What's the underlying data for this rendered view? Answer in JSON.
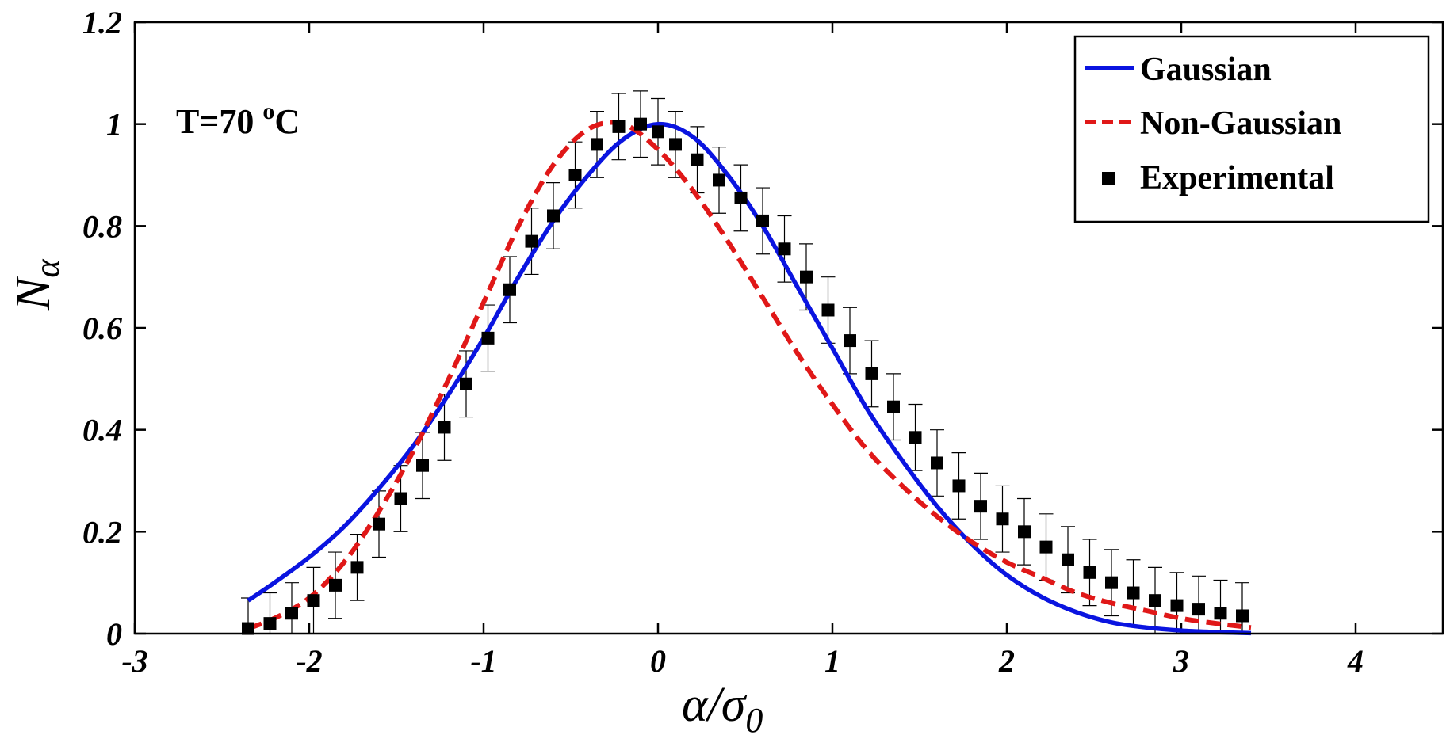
{
  "chart_data": {
    "type": "line",
    "xlabel": {
      "main": "α/σ",
      "sub": "0"
    },
    "ylabel": {
      "main": "N",
      "sub": "α"
    },
    "xlim": [
      -3,
      4.5
    ],
    "ylim": [
      0,
      1.2
    ],
    "xticks": [
      -3,
      -2,
      -1,
      0,
      1,
      2,
      3,
      4
    ],
    "xtick_labels": [
      "-3",
      "-2",
      "-1",
      "0",
      "1",
      "2",
      "3",
      "4"
    ],
    "yticks": [
      0,
      0.2,
      0.4,
      0.6,
      0.8,
      1.0,
      1.2
    ],
    "ytick_labels": [
      "0",
      "0.2",
      "0.4",
      "0.6",
      "0.8",
      "1",
      "1.2"
    ],
    "annotation": {
      "text": "T=70 ",
      "sup": "o",
      "unit": "C"
    },
    "legend_position": "top-right",
    "series": [
      {
        "name": "Gaussian",
        "style": "solid-line",
        "color": "#0a14e0",
        "x": [
          -2.35,
          -2.2,
          -2.0,
          -1.8,
          -1.6,
          -1.4,
          -1.2,
          -1.0,
          -0.8,
          -0.6,
          -0.4,
          -0.2,
          0.0,
          0.2,
          0.4,
          0.6,
          0.8,
          1.0,
          1.2,
          1.4,
          1.6,
          1.8,
          2.0,
          2.2,
          2.4,
          2.6,
          2.8,
          3.0,
          3.2,
          3.4
        ],
        "y": [
          0.065,
          0.1,
          0.15,
          0.21,
          0.285,
          0.37,
          0.47,
          0.58,
          0.7,
          0.81,
          0.9,
          0.97,
          1.0,
          0.975,
          0.9,
          0.8,
          0.68,
          0.56,
          0.44,
          0.34,
          0.25,
          0.175,
          0.115,
          0.072,
          0.042,
          0.022,
          0.012,
          0.006,
          0.003,
          0.001
        ]
      },
      {
        "name": "Non-Gaussian",
        "style": "dashed-line",
        "color": "#e01818",
        "x": [
          -2.35,
          -2.2,
          -2.0,
          -1.8,
          -1.6,
          -1.4,
          -1.2,
          -1.0,
          -0.8,
          -0.6,
          -0.4,
          -0.2,
          0.0,
          0.2,
          0.4,
          0.6,
          0.8,
          1.0,
          1.2,
          1.4,
          1.6,
          1.8,
          2.0,
          2.2,
          2.4,
          2.6,
          2.8,
          3.0,
          3.2,
          3.4
        ],
        "y": [
          0.01,
          0.03,
          0.07,
          0.14,
          0.24,
          0.36,
          0.5,
          0.65,
          0.8,
          0.92,
          0.99,
          1.0,
          0.95,
          0.87,
          0.77,
          0.66,
          0.55,
          0.45,
          0.36,
          0.29,
          0.23,
          0.18,
          0.14,
          0.11,
          0.08,
          0.06,
          0.045,
          0.03,
          0.02,
          0.012
        ]
      },
      {
        "name": "Experimental",
        "style": "square-markers-with-error-bars",
        "color": "#000000",
        "x": [
          -2.35,
          -2.225,
          -2.1,
          -1.975,
          -1.85,
          -1.725,
          -1.6,
          -1.475,
          -1.35,
          -1.225,
          -1.1,
          -0.975,
          -0.85,
          -0.725,
          -0.6,
          -0.475,
          -0.35,
          -0.225,
          -0.1,
          0.0,
          0.1,
          0.225,
          0.35,
          0.475,
          0.6,
          0.725,
          0.85,
          0.975,
          1.1,
          1.225,
          1.35,
          1.475,
          1.6,
          1.725,
          1.85,
          1.975,
          2.1,
          2.225,
          2.35,
          2.475,
          2.6,
          2.725,
          2.85,
          2.975,
          3.1,
          3.225,
          3.35
        ],
        "y": [
          0.01,
          0.02,
          0.04,
          0.065,
          0.095,
          0.13,
          0.215,
          0.265,
          0.33,
          0.405,
          0.49,
          0.58,
          0.675,
          0.77,
          0.82,
          0.9,
          0.96,
          0.995,
          1.0,
          0.985,
          0.96,
          0.93,
          0.89,
          0.855,
          0.81,
          0.755,
          0.7,
          0.635,
          0.575,
          0.51,
          0.445,
          0.385,
          0.335,
          0.29,
          0.25,
          0.225,
          0.2,
          0.17,
          0.145,
          0.12,
          0.1,
          0.08,
          0.065,
          0.055,
          0.048,
          0.04,
          0.035
        ],
        "err": [
          0.06,
          0.06,
          0.06,
          0.065,
          0.065,
          0.065,
          0.065,
          0.065,
          0.065,
          0.065,
          0.065,
          0.065,
          0.065,
          0.065,
          0.065,
          0.065,
          0.065,
          0.065,
          0.065,
          0.065,
          0.065,
          0.065,
          0.065,
          0.065,
          0.065,
          0.065,
          0.065,
          0.065,
          0.065,
          0.065,
          0.065,
          0.065,
          0.065,
          0.065,
          0.065,
          0.065,
          0.065,
          0.065,
          0.065,
          0.065,
          0.065,
          0.065,
          0.065,
          0.065,
          0.065,
          0.065,
          0.065
        ]
      }
    ]
  }
}
